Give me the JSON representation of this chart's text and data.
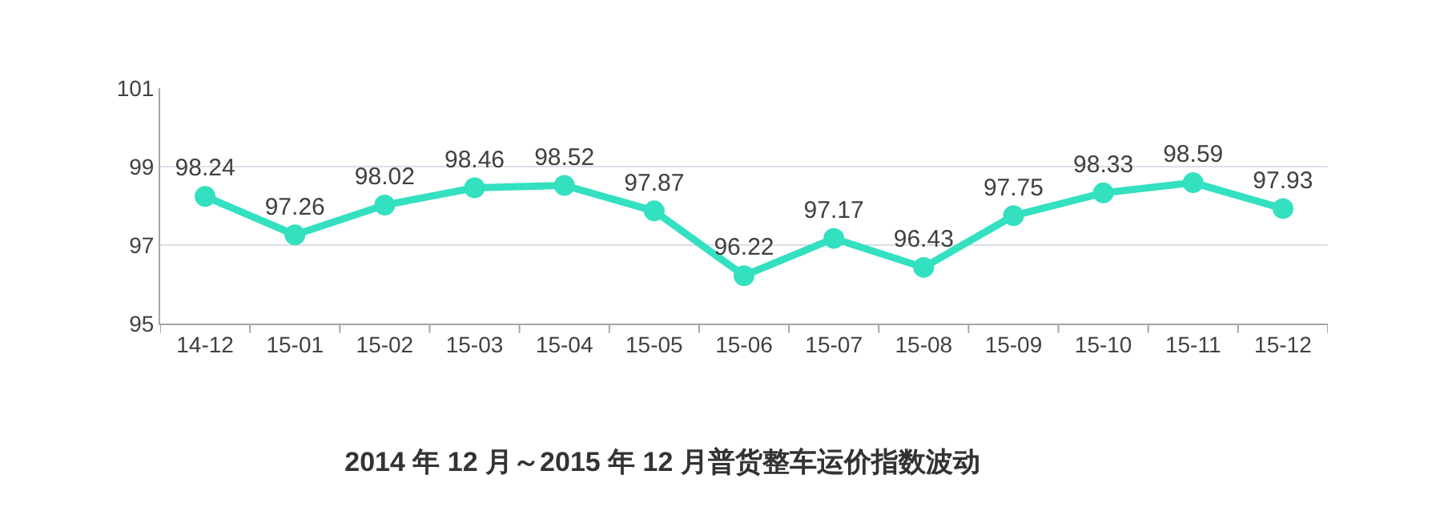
{
  "chart_data": {
    "type": "line",
    "title": "2014 年 12 月～2015 年 12 月普货整车运价指数波动",
    "categories": [
      "14-12",
      "15-01",
      "15-02",
      "15-03",
      "15-04",
      "15-05",
      "15-06",
      "15-07",
      "15-08",
      "15-09",
      "15-10",
      "15-11",
      "15-12"
    ],
    "series": [
      {
        "color": "#33e0c0",
        "values": [
          98.24,
          97.26,
          98.02,
          98.46,
          98.52,
          97.87,
          96.22,
          97.17,
          96.43,
          97.75,
          98.33,
          98.59,
          97.93
        ]
      }
    ],
    "ylim": [
      95,
      101
    ],
    "yticks": [
      95,
      97,
      99,
      101
    ],
    "grid": "y",
    "marker": "circle",
    "line_style": "solid",
    "data_labels": true
  }
}
